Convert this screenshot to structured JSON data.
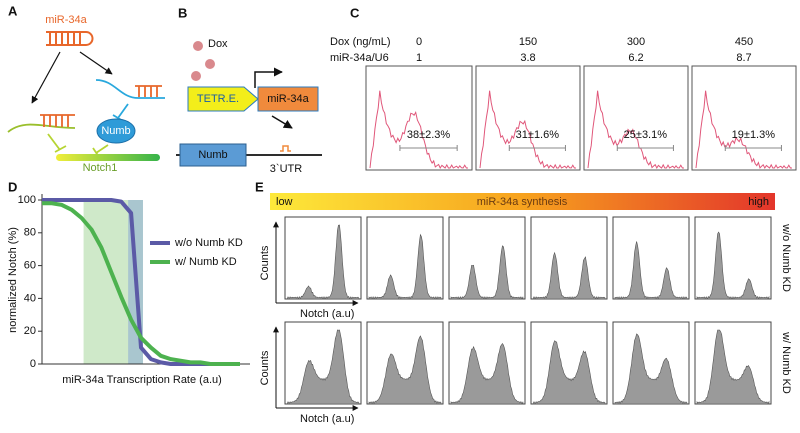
{
  "panel_labels": [
    "A",
    "B",
    "C",
    "D",
    "E"
  ],
  "panel_a": {
    "mirna": "miR-34a",
    "numb": "Numb",
    "notch": "Notch1"
  },
  "panel_b": {
    "dox": "Dox",
    "promoter": "TETR.E.",
    "mirna": "miR-34a",
    "numb": "Numb",
    "utr": "3`UTR"
  },
  "panel_c": {
    "dox_label": "Dox (ng/mL)",
    "ratio_label": "miR-34a/U6",
    "dox": [
      0,
      150,
      300,
      450
    ],
    "ratio": [
      1,
      3.8,
      6.2,
      8.7
    ],
    "fractions": [
      "38±2.3%",
      "31±1.6%",
      "25±3.1%",
      "19±1.3%"
    ]
  },
  "chart_data": {
    "type": "line",
    "x_label": "miR-34a Transcription Rate (a.u)",
    "y_label": "normalized Notch (%)",
    "categories": [
      null,
      null,
      null,
      null,
      null,
      null,
      null,
      null,
      null,
      null,
      null,
      null,
      null,
      null,
      null,
      null,
      null,
      null,
      null,
      null,
      null
    ],
    "series": [
      {
        "name": "w/o Numb KD",
        "color": "#5b5aa6",
        "values": [
          100,
          100,
          100,
          100,
          100,
          100,
          100,
          100,
          99,
          92,
          10,
          3,
          1,
          0,
          0,
          0,
          0,
          0,
          0,
          0,
          0
        ]
      },
      {
        "name": "w/ Numb KD",
        "color": "#4db24f",
        "values": [
          98,
          98,
          97,
          94,
          89,
          82,
          71,
          56,
          41,
          27,
          16,
          10,
          5,
          3,
          2,
          1,
          1,
          0,
          0,
          0,
          0
        ]
      }
    ],
    "ylim": [
      0,
      100
    ],
    "yticks": [
      0,
      20,
      40,
      60,
      80,
      100
    ],
    "legend": "upper right"
  },
  "panel_e": {
    "low": "low",
    "title": "miR-34a synthesis",
    "high": "high",
    "rows": [
      "w/o Numb KD",
      "w/ Numb KD"
    ],
    "y_label": "Counts",
    "x_label": "Notch (a.u)"
  }
}
